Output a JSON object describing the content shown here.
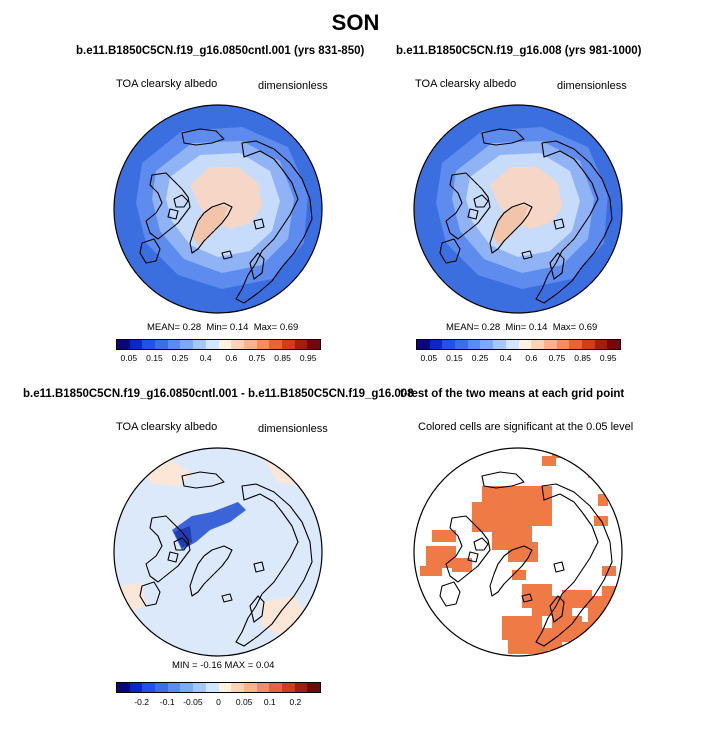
{
  "figure": {
    "title": "SON"
  },
  "panels": {
    "p1": {
      "case_title": "b.e11.B1850C5CN.f19_g16.0850cntl.001 (yrs 831-850)",
      "variable": "TOA clearsky albedo",
      "units": "dimensionless",
      "stats": {
        "mean_label": "MEAN=",
        "mean": "0.28",
        "min_label": "Min=",
        "min": "0.14",
        "max_label": "Max=",
        "max": "0.69"
      }
    },
    "p2": {
      "case_title": "b.e11.B1850C5CN.f19_g16.008 (yrs 981-1000)",
      "variable": "TOA clearsky albedo",
      "units": "dimensionless",
      "stats": {
        "mean_label": "MEAN=",
        "mean": "0.28",
        "min_label": "Min=",
        "min": "0.14",
        "max_label": "Max=",
        "max": "0.69"
      }
    },
    "p3": {
      "case_title": "b.e11.B1850C5CN.f19_g16.0850cntl.001 - b.e11.B1850C5CN.f19_g16.008",
      "variable": "TOA clearsky albedo",
      "units": "dimensionless",
      "stats_text": "MIN =  -0.16 MAX =  0.04"
    },
    "p4": {
      "case_title": "t-test of the two means at each grid point",
      "note": "Colored cells are significant at the 0.05 level"
    }
  },
  "colorbars": {
    "albedo": {
      "colors": [
        "#08087a",
        "#0a28c8",
        "#2350e6",
        "#3c6ee6",
        "#5a8cf0",
        "#7caaf5",
        "#a5c8fa",
        "#d2e6ff",
        "#fff2e0",
        "#ffd2b4",
        "#fab48c",
        "#f58c64",
        "#e6643c",
        "#d23c1e",
        "#a01e0a",
        "#6e0a0a"
      ],
      "labels": [
        "0.05",
        "0.15",
        "0.25",
        "0.4",
        "0.6",
        "0.75",
        "0.85",
        "0.95"
      ]
    },
    "diff": {
      "colors": [
        "#08087a",
        "#0a28c8",
        "#2350e6",
        "#3c6ee6",
        "#5a8cf0",
        "#7caaf5",
        "#a5c8fa",
        "#d2e6ff",
        "#fff2e0",
        "#ffd2b4",
        "#fab48c",
        "#f58c64",
        "#e6643c",
        "#d23c1e",
        "#a01e0a",
        "#6e0a0a"
      ],
      "labels": [
        "-0.2",
        "-0.1",
        "-0.05",
        "0",
        "0.05",
        "0.1",
        "0.2"
      ]
    }
  },
  "map_colors": {
    "ocean": "#3b6fe0",
    "ring2": "#5d8cee",
    "ring3": "#8fb3f5",
    "ring4": "#c6dcfa",
    "ice": "#f6d6c6",
    "greenland": "#f2c4aa",
    "diff_bg": "#dce9fb",
    "diff_neg": "#3a64d8",
    "diff_neg_dark": "#1e3cb4",
    "diff_pos": "#fbe6d8",
    "sig": "#f07a45",
    "coast": "#000000"
  }
}
